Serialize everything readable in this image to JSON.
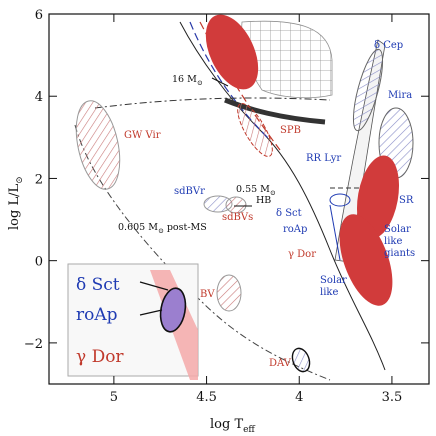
{
  "chart_data": {
    "type": "scatter",
    "xlabel": "log T",
    "xlabel_sub": "eff",
    "ylabel": "log L/L",
    "ylabel_sub": "⊙",
    "xlim": [
      5.35,
      3.3
    ],
    "ylim": [
      -3,
      6
    ],
    "x_ticks": [
      5,
      4.5,
      4,
      3.5
    ],
    "x_tick_labels": [
      "5",
      "4.5",
      "4",
      "3.5"
    ],
    "y_ticks": [
      -2,
      0,
      2,
      4,
      6
    ],
    "y_tick_labels": [
      "−2",
      "0",
      "2",
      "4",
      "6"
    ],
    "regions": [
      {
        "label": "δ Cep",
        "logT": 3.72,
        "logL": 3.7,
        "color": "blue"
      },
      {
        "label": "Mira",
        "logT": 3.52,
        "logL": 3.4,
        "color": "blue"
      },
      {
        "label": "SR",
        "logT": 3.52,
        "logL": 1.6,
        "color": "blue"
      },
      {
        "label": "Solar like giants",
        "logT": 3.55,
        "logL": 0.6,
        "color": "blue"
      },
      {
        "label": "Solar like",
        "logT": 3.95,
        "logL": -0.2,
        "color": "blue"
      },
      {
        "label": "RR Lyr",
        "logT": 3.86,
        "logL": 2.1,
        "color": "blue"
      },
      {
        "label": "δ Sct",
        "logT": 3.88,
        "logL": 1.2,
        "color": "blue"
      },
      {
        "label": "roAp",
        "logT": 3.9,
        "logL": 0.8,
        "color": "blue"
      },
      {
        "label": "γ Dor",
        "logT": 3.86,
        "logL": 0.4,
        "color": "red"
      },
      {
        "label": "GW Vir",
        "logT": 5.0,
        "logL": 2.7,
        "color": "red"
      },
      {
        "label": "SPB",
        "logT": 4.25,
        "logL": 2.8,
        "color": "red"
      },
      {
        "label": "sdBVr",
        "logT": 4.52,
        "logL": 1.5,
        "color": "blue"
      },
      {
        "label": "sdBVs",
        "logT": 4.42,
        "logL": 1.0,
        "color": "red"
      },
      {
        "label": "DAV",
        "logT": 4.05,
        "logL": -2.3,
        "color": "red"
      },
      {
        "label": "BV",
        "logT": 4.42,
        "logL": -0.8,
        "color": "red"
      }
    ],
    "annotations": [
      {
        "text": "16 M",
        "sub": "⊙"
      },
      {
        "text": "0.55 M",
        "sub": "⊙"
      },
      {
        "text": "HB"
      },
      {
        "text": "0.605 M",
        "sub": "⊙",
        "suffix": " post-MS"
      }
    ],
    "inset_labels": [
      {
        "text": "δ Sct",
        "color": "#1f3bb3"
      },
      {
        "text": "roAp",
        "color": "#1f3bb3"
      },
      {
        "text": "γ Dor",
        "color": "#c0392b"
      }
    ]
  }
}
